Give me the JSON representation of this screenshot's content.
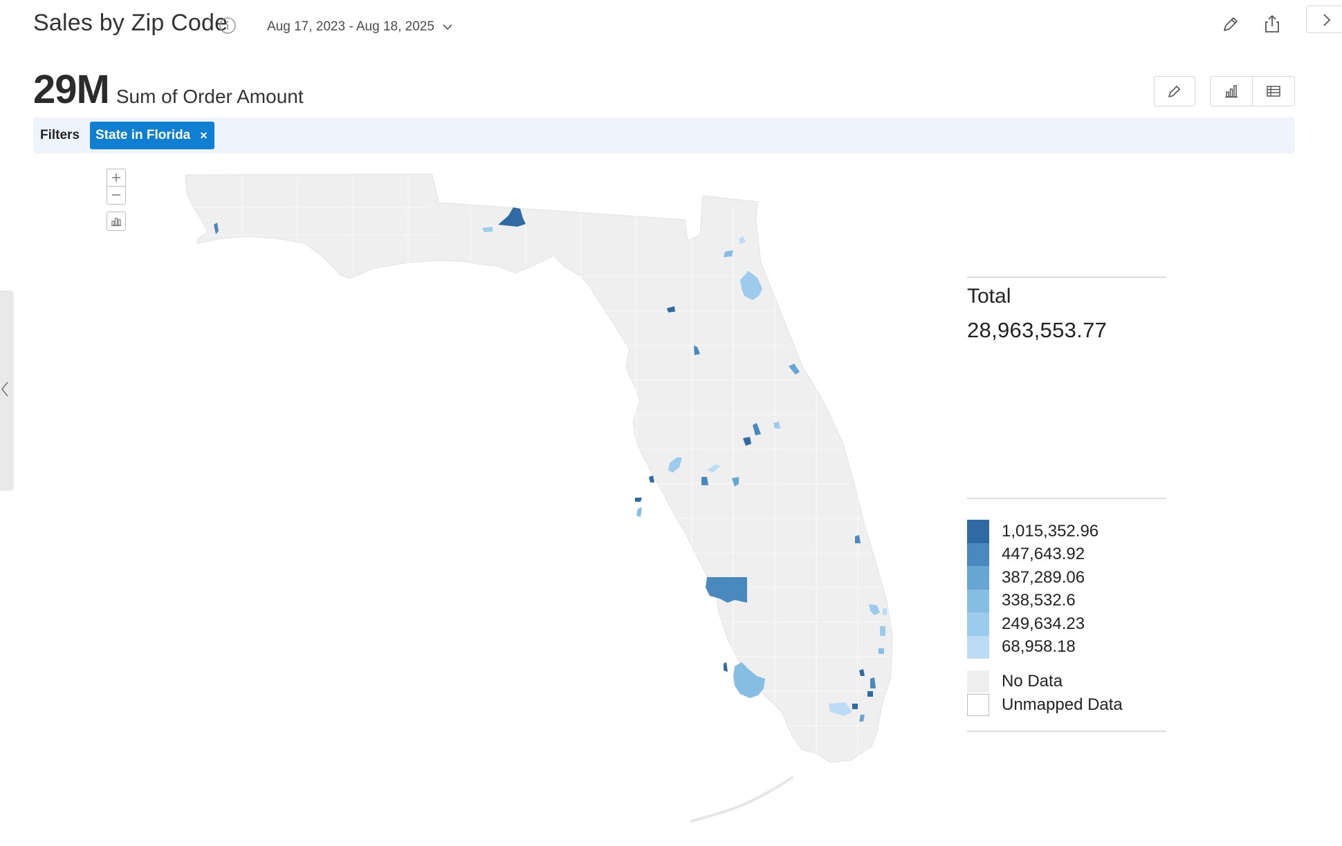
{
  "header": {
    "title": "Sales by Zip Code",
    "date_range": "Aug 17, 2023 - Aug 18, 2025"
  },
  "kpi": {
    "value": "29M",
    "label": "Sum of Order Amount"
  },
  "filters": {
    "label": "Filters",
    "chips": [
      {
        "text": "State in Florida",
        "remove": "×"
      }
    ]
  },
  "legend": {
    "total_label": "Total",
    "total_value": "28,963,553.77",
    "buckets": [
      {
        "label": "1,015,352.96",
        "color": "#2f6aa3"
      },
      {
        "label": "447,643.92",
        "color": "#4a89bd"
      },
      {
        "label": "387,289.06",
        "color": "#67a5d2"
      },
      {
        "label": "338,532.6",
        "color": "#86bde3"
      },
      {
        "label": "249,634.23",
        "color": "#9dcbec"
      },
      {
        "label": "68,958.18",
        "color": "#bcdcf6"
      }
    ],
    "no_data_label": "No Data",
    "no_data_color": "#eeeeee",
    "unmapped_label": "Unmapped Data",
    "unmapped_color": "#ffffff"
  },
  "map": {
    "region": "Florida",
    "level": "zip code",
    "base_color": "#efefef",
    "border_color": "#ffffff"
  },
  "icons": {
    "info": "info-icon",
    "date_dropdown": "chevron-down-icon",
    "edit_top": "pencil-icon",
    "share": "share-icon",
    "collapse_right": "chevron-right-icon",
    "edit": "pencil-icon",
    "bar_chart": "bar-chart-icon",
    "table": "table-icon",
    "zoom_in": "plus-icon",
    "zoom_out": "minus-icon",
    "reset": "reset-view-icon",
    "collapse_left": "chevron-left-icon"
  }
}
